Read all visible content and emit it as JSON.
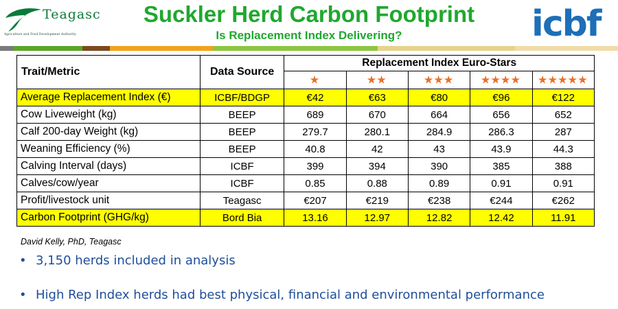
{
  "header": {
    "logo_left": {
      "name": "Teagasc",
      "tagline": "Agriculture and Food Development Authority"
    },
    "title": "Suckler Herd Carbon Footprint",
    "subtitle": "Is Replacement Index Delivering?",
    "logo_right": {
      "name": "icbf"
    }
  },
  "stripe_colors": [
    "#7a7a7a",
    "#5aa528",
    "#7b4a1e",
    "#f2a21a",
    "#8cc640",
    "#e6d38c",
    "#f0dca8"
  ],
  "table": {
    "col_trait": "Trait/Metric",
    "col_source": "Data Source",
    "group_header": "Replacement Index Euro-Stars",
    "stars": [
      "★",
      "★★",
      "★★★",
      "★★★★",
      "★★★★★"
    ],
    "star_color": "#e8702a",
    "highlight_color": "#ffff00",
    "rows": [
      {
        "trait": "Average Replacement Index (€)",
        "source": "ICBF/BDGP",
        "values": [
          "€42",
          "€63",
          "€80",
          "€96",
          "€122"
        ],
        "highlight": true
      },
      {
        "trait": "Cow Liveweight (kg)",
        "source": "BEEP",
        "values": [
          "689",
          "670",
          "664",
          "656",
          "652"
        ],
        "highlight": false
      },
      {
        "trait": "Calf 200-day Weight (kg)",
        "source": "BEEP",
        "values": [
          "279.7",
          "280.1",
          "284.9",
          "286.3",
          "287"
        ],
        "highlight": false
      },
      {
        "trait": "Weaning Efficiency (%)",
        "source": "BEEP",
        "values": [
          "40.8",
          "42",
          "43",
          "43.9",
          "44.3"
        ],
        "highlight": false
      },
      {
        "trait": "Calving Interval (days)",
        "source": "ICBF",
        "values": [
          "399",
          "394",
          "390",
          "385",
          "388"
        ],
        "highlight": false
      },
      {
        "trait": "Calves/cow/year",
        "source": "ICBF",
        "values": [
          "0.85",
          "0.88",
          "0.89",
          "0.91",
          "0.91"
        ],
        "highlight": false
      },
      {
        "trait": "Profit/livestock unit",
        "source": "Teagasc",
        "values": [
          "€207",
          "€219",
          "€238",
          "€244",
          "€262"
        ],
        "highlight": false
      },
      {
        "trait": "Carbon Footprint (GHG/kg)",
        "source": "Bord Bia",
        "values": [
          "13.16",
          "12.97",
          "12.82",
          "12.42",
          "11.91"
        ],
        "highlight": true
      }
    ]
  },
  "citation": "David Kelly, PhD, Teagasc",
  "bullets": [
    "3,150 herds included in analysis",
    "High Rep Index herds had best physical, financial and environmental performance"
  ],
  "bullet_color": "#1f4e9a"
}
